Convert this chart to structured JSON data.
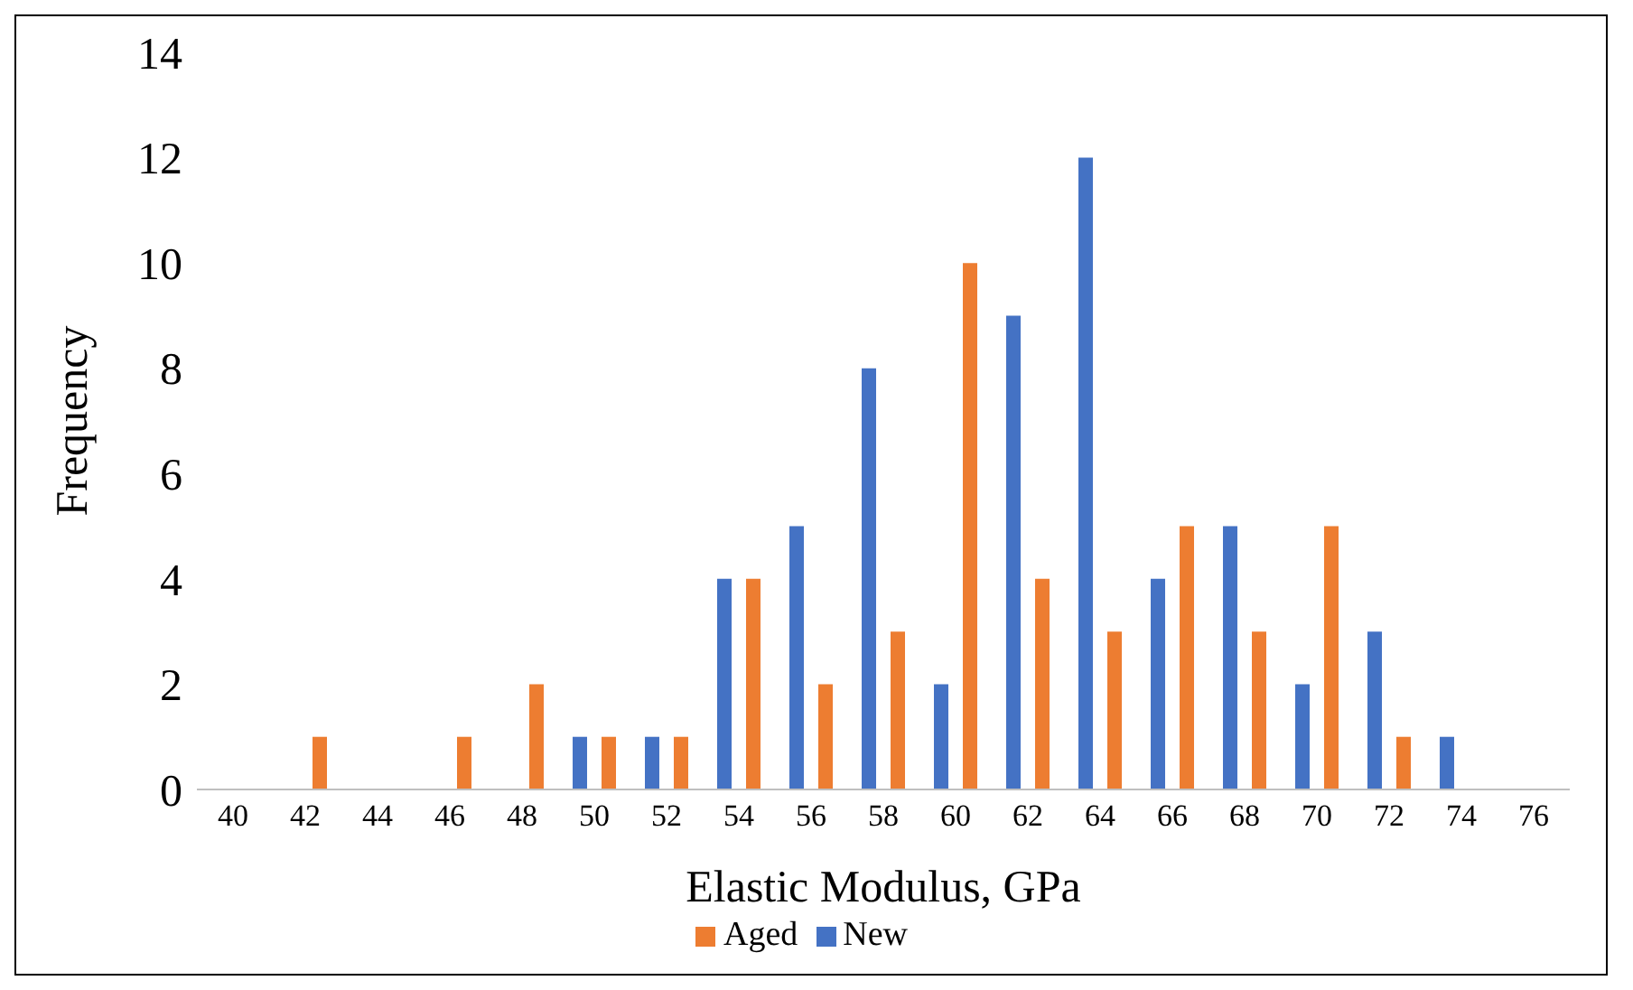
{
  "chart_data": {
    "type": "bar",
    "xlabel": "Elastic Modulus, GPa",
    "ylabel": "Frequency",
    "categories": [
      "40",
      "42",
      "44",
      "46",
      "48",
      "50",
      "52",
      "54",
      "56",
      "58",
      "60",
      "62",
      "64",
      "66",
      "68",
      "70",
      "72",
      "74",
      "76"
    ],
    "series": [
      {
        "name": "New",
        "color": "#4472c4",
        "values": [
          0,
          0,
          0,
          0,
          0,
          1,
          1,
          4,
          5,
          8,
          2,
          9,
          12,
          4,
          5,
          2,
          3,
          1,
          0
        ]
      },
      {
        "name": "Aged",
        "color": "#ed7d31",
        "values": [
          0,
          1,
          0,
          1,
          2,
          1,
          1,
          4,
          2,
          3,
          10,
          4,
          3,
          5,
          3,
          5,
          1,
          0,
          0
        ]
      }
    ],
    "ylim": [
      0,
      14
    ],
    "yticks": [
      0,
      2,
      4,
      6,
      8,
      10,
      12,
      14
    ],
    "grid": false,
    "legend": "bottom"
  }
}
